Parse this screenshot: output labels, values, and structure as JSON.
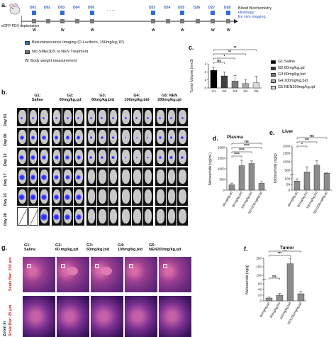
{
  "panel_a": {
    "letter": "a.",
    "implant_label": "eGFP-PDX implantation",
    "days": [
      "D01",
      "D02",
      "D03",
      "D04",
      "D05",
      "D23",
      "D24",
      "D25",
      "D26",
      "D27",
      "D28"
    ],
    "ellipsis": ". . . .",
    "endpoints": [
      "Blood Biochemistry",
      "Histology",
      "Ex vivo imaging"
    ],
    "week_marker": "W",
    "legend": {
      "imaging": "Bioluminescence Imaging (D-Luciferin, 150mg/kg, IP)",
      "treatment": "Nic-SMEDDS or NEN Treatment",
      "weight": "W: Body weight measurement"
    }
  },
  "panel_b": {
    "letter": "b.",
    "groups": [
      {
        "name": "G1:",
        "dose": "Saline"
      },
      {
        "name": "G2:",
        "dose": "60mg/kg,qd"
      },
      {
        "name": "G3:",
        "dose": "60mg/kg,bid"
      },
      {
        "name": "G4:",
        "dose": "100mg/kg,bid"
      },
      {
        "name": "G5: NEN",
        "dose": "200mg/kg,qd"
      }
    ],
    "days": [
      "Day 01",
      "Day 06",
      "Day 12",
      "Day 17",
      "Day 23",
      "Day 28"
    ]
  },
  "panel_g": {
    "letter": "g.",
    "groups": [
      {
        "name": "G1:",
        "dose": "Saline"
      },
      {
        "name": "G2:",
        "dose": "60 mg/kg,qd"
      },
      {
        "name": "G3:",
        "dose": "60mg/kg,bid"
      },
      {
        "name": "G4:",
        "dose": "100mg/kg,bid"
      },
      {
        "name": "G5:",
        "dose": "NEN200mg/kg,qd"
      }
    ],
    "scale_top": "Scale Bar: 250 μm",
    "zoom_label": "Zoom In",
    "scale_bottom": "Scale Bar: 25 μm"
  },
  "colors": {
    "blue_marker": "#2d6bd6",
    "gray_marker": "#777777",
    "bar_G1": "#000000",
    "bar_G2": "#404040",
    "bar_G3": "#7a7a7a",
    "bar_G4": "#a8a8a8",
    "bar_G5": "#d9d9d9",
    "bar_conc": "#8c8c8c"
  },
  "chart_data": [
    {
      "id": "c",
      "letter": "c.",
      "type": "bar",
      "title": "",
      "ylabel": "Tumor Volume (mm3)",
      "categories": [
        "G1",
        "G2",
        "G3",
        "G4",
        "G5"
      ],
      "values": [
        2.2,
        1.5,
        0.85,
        0.55,
        0.65
      ],
      "errors": [
        0.4,
        0.5,
        0.7,
        0.5,
        0.8
      ],
      "ylim": [
        0,
        3
      ],
      "yticks": [
        0,
        1,
        2,
        3
      ],
      "significance": [
        "ns",
        "*",
        "**",
        "**"
      ],
      "legend": [
        "G1:Saline",
        "G2:60mg/kg,qd",
        "G3:60mg/kg,bid",
        "G4:100mg/kg,bid",
        "G5:NEN200mg/kg,qd"
      ]
    },
    {
      "id": "d",
      "letter": "d.",
      "type": "bar",
      "title": "Plasma",
      "ylabel": "Niclosamide (ng/mL)",
      "categories": [
        "60mg/kg,qd",
        "60mg/kg,bid",
        "100mg/kg,bid",
        "NEN200mg/kg,qd"
      ],
      "values": [
        250,
        1150,
        1250,
        320
      ],
      "errors": [
        80,
        250,
        120,
        80
      ],
      "ylim": [
        0,
        2000
      ],
      "yticks": [
        0,
        500,
        1000,
        1500,
        2000
      ],
      "significance": [
        "ns",
        "****",
        "****",
        "****"
      ]
    },
    {
      "id": "e",
      "letter": "e.",
      "type": "bar",
      "title": "Liver",
      "ylabel": "Niclosamide (ng/g)",
      "categories": [
        "60mg/kg,qd",
        "60mg/kg,bid",
        "100mg/kg,bid",
        "NEN200mg/kg,qd"
      ],
      "values": [
        80,
        500,
        900,
        420
      ],
      "errors": [
        20,
        300,
        250,
        20
      ],
      "yticks_labels": [
        "0",
        "50",
        "100",
        "500",
        "1000",
        "1500",
        "2000"
      ],
      "significance": [
        "ns",
        "***",
        "*"
      ]
    },
    {
      "id": "f",
      "letter": "f.",
      "type": "bar",
      "title": "Tumor",
      "ylabel": "Niclosamide (ng/g)",
      "categories": [
        "60mg/kg,qd",
        "60mg/kg,bid",
        "100mg/kg,bid",
        "NEN200mg/kg,qd"
      ],
      "values": [
        10,
        20,
        170,
        25
      ],
      "errors": [
        3,
        6,
        30,
        8
      ],
      "yticks_labels": [
        "0",
        "20",
        "40",
        "60",
        "100",
        "150",
        "200"
      ],
      "significance": [
        "ns",
        "***",
        "ns"
      ]
    }
  ]
}
